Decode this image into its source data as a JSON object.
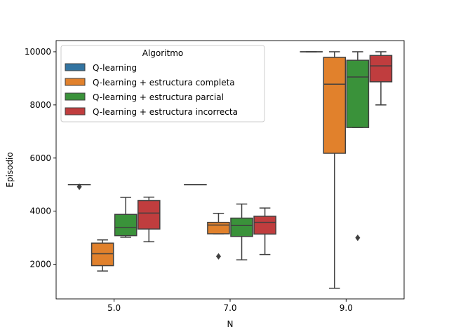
{
  "chart_data": {
    "type": "box",
    "title": "",
    "xlabel": "N",
    "ylabel": "Episodio",
    "categories": [
      "5.0",
      "7.0",
      "9.0"
    ],
    "ylim": [
      700,
      10420
    ],
    "yticks": [
      2000,
      4000,
      6000,
      8000,
      10000
    ],
    "ytick_labels": [
      "2000",
      "4000",
      "6000",
      "8000",
      "10000"
    ],
    "grid": false,
    "legend": {
      "title": "Algoritmo",
      "placement": "top-left"
    },
    "series": [
      {
        "name": "Q-learning",
        "color": "#3274a1",
        "boxes": [
          {
            "min": 5000,
            "q1": 5000,
            "median": 5000,
            "q3": 5000,
            "max": 5000,
            "outliers": [
              4920
            ]
          },
          {
            "min": 5000,
            "q1": 5000,
            "median": 5000,
            "q3": 5000,
            "max": 5000,
            "outliers": []
          },
          {
            "min": 10000,
            "q1": 10000,
            "median": 10000,
            "q3": 10000,
            "max": 10000,
            "outliers": []
          }
        ]
      },
      {
        "name": "Q-learning + estructura completa",
        "color": "#e1812c",
        "boxes": [
          {
            "min": 1750,
            "q1": 1950,
            "median": 2400,
            "q3": 2800,
            "max": 2920,
            "outliers": []
          },
          {
            "min": 3150,
            "q1": 3150,
            "median": 3480,
            "q3": 3580,
            "max": 3920,
            "outliers": [
              2300
            ]
          },
          {
            "min": 1100,
            "q1": 6180,
            "median": 8780,
            "q3": 9790,
            "max": 10000,
            "outliers": []
          }
        ]
      },
      {
        "name": "Q-learning + estructura parcial",
        "color": "#3a923a",
        "boxes": [
          {
            "min": 3020,
            "q1": 3080,
            "median": 3380,
            "q3": 3880,
            "max": 4520,
            "outliers": []
          },
          {
            "min": 2170,
            "q1": 3050,
            "median": 3460,
            "q3": 3740,
            "max": 4270,
            "outliers": []
          },
          {
            "min": 7150,
            "q1": 7150,
            "median": 9050,
            "q3": 9680,
            "max": 10000,
            "outliers": [
              3000
            ]
          }
        ]
      },
      {
        "name": "Q-learning + estructura incorrecta",
        "color": "#c03d3e",
        "boxes": [
          {
            "min": 2850,
            "q1": 3330,
            "median": 3930,
            "q3": 4400,
            "max": 4530,
            "outliers": []
          },
          {
            "min": 2370,
            "q1": 3140,
            "median": 3580,
            "q3": 3810,
            "max": 4120,
            "outliers": []
          },
          {
            "min": 8000,
            "q1": 8870,
            "median": 9470,
            "q3": 9860,
            "max": 10000,
            "outliers": []
          }
        ]
      }
    ]
  }
}
